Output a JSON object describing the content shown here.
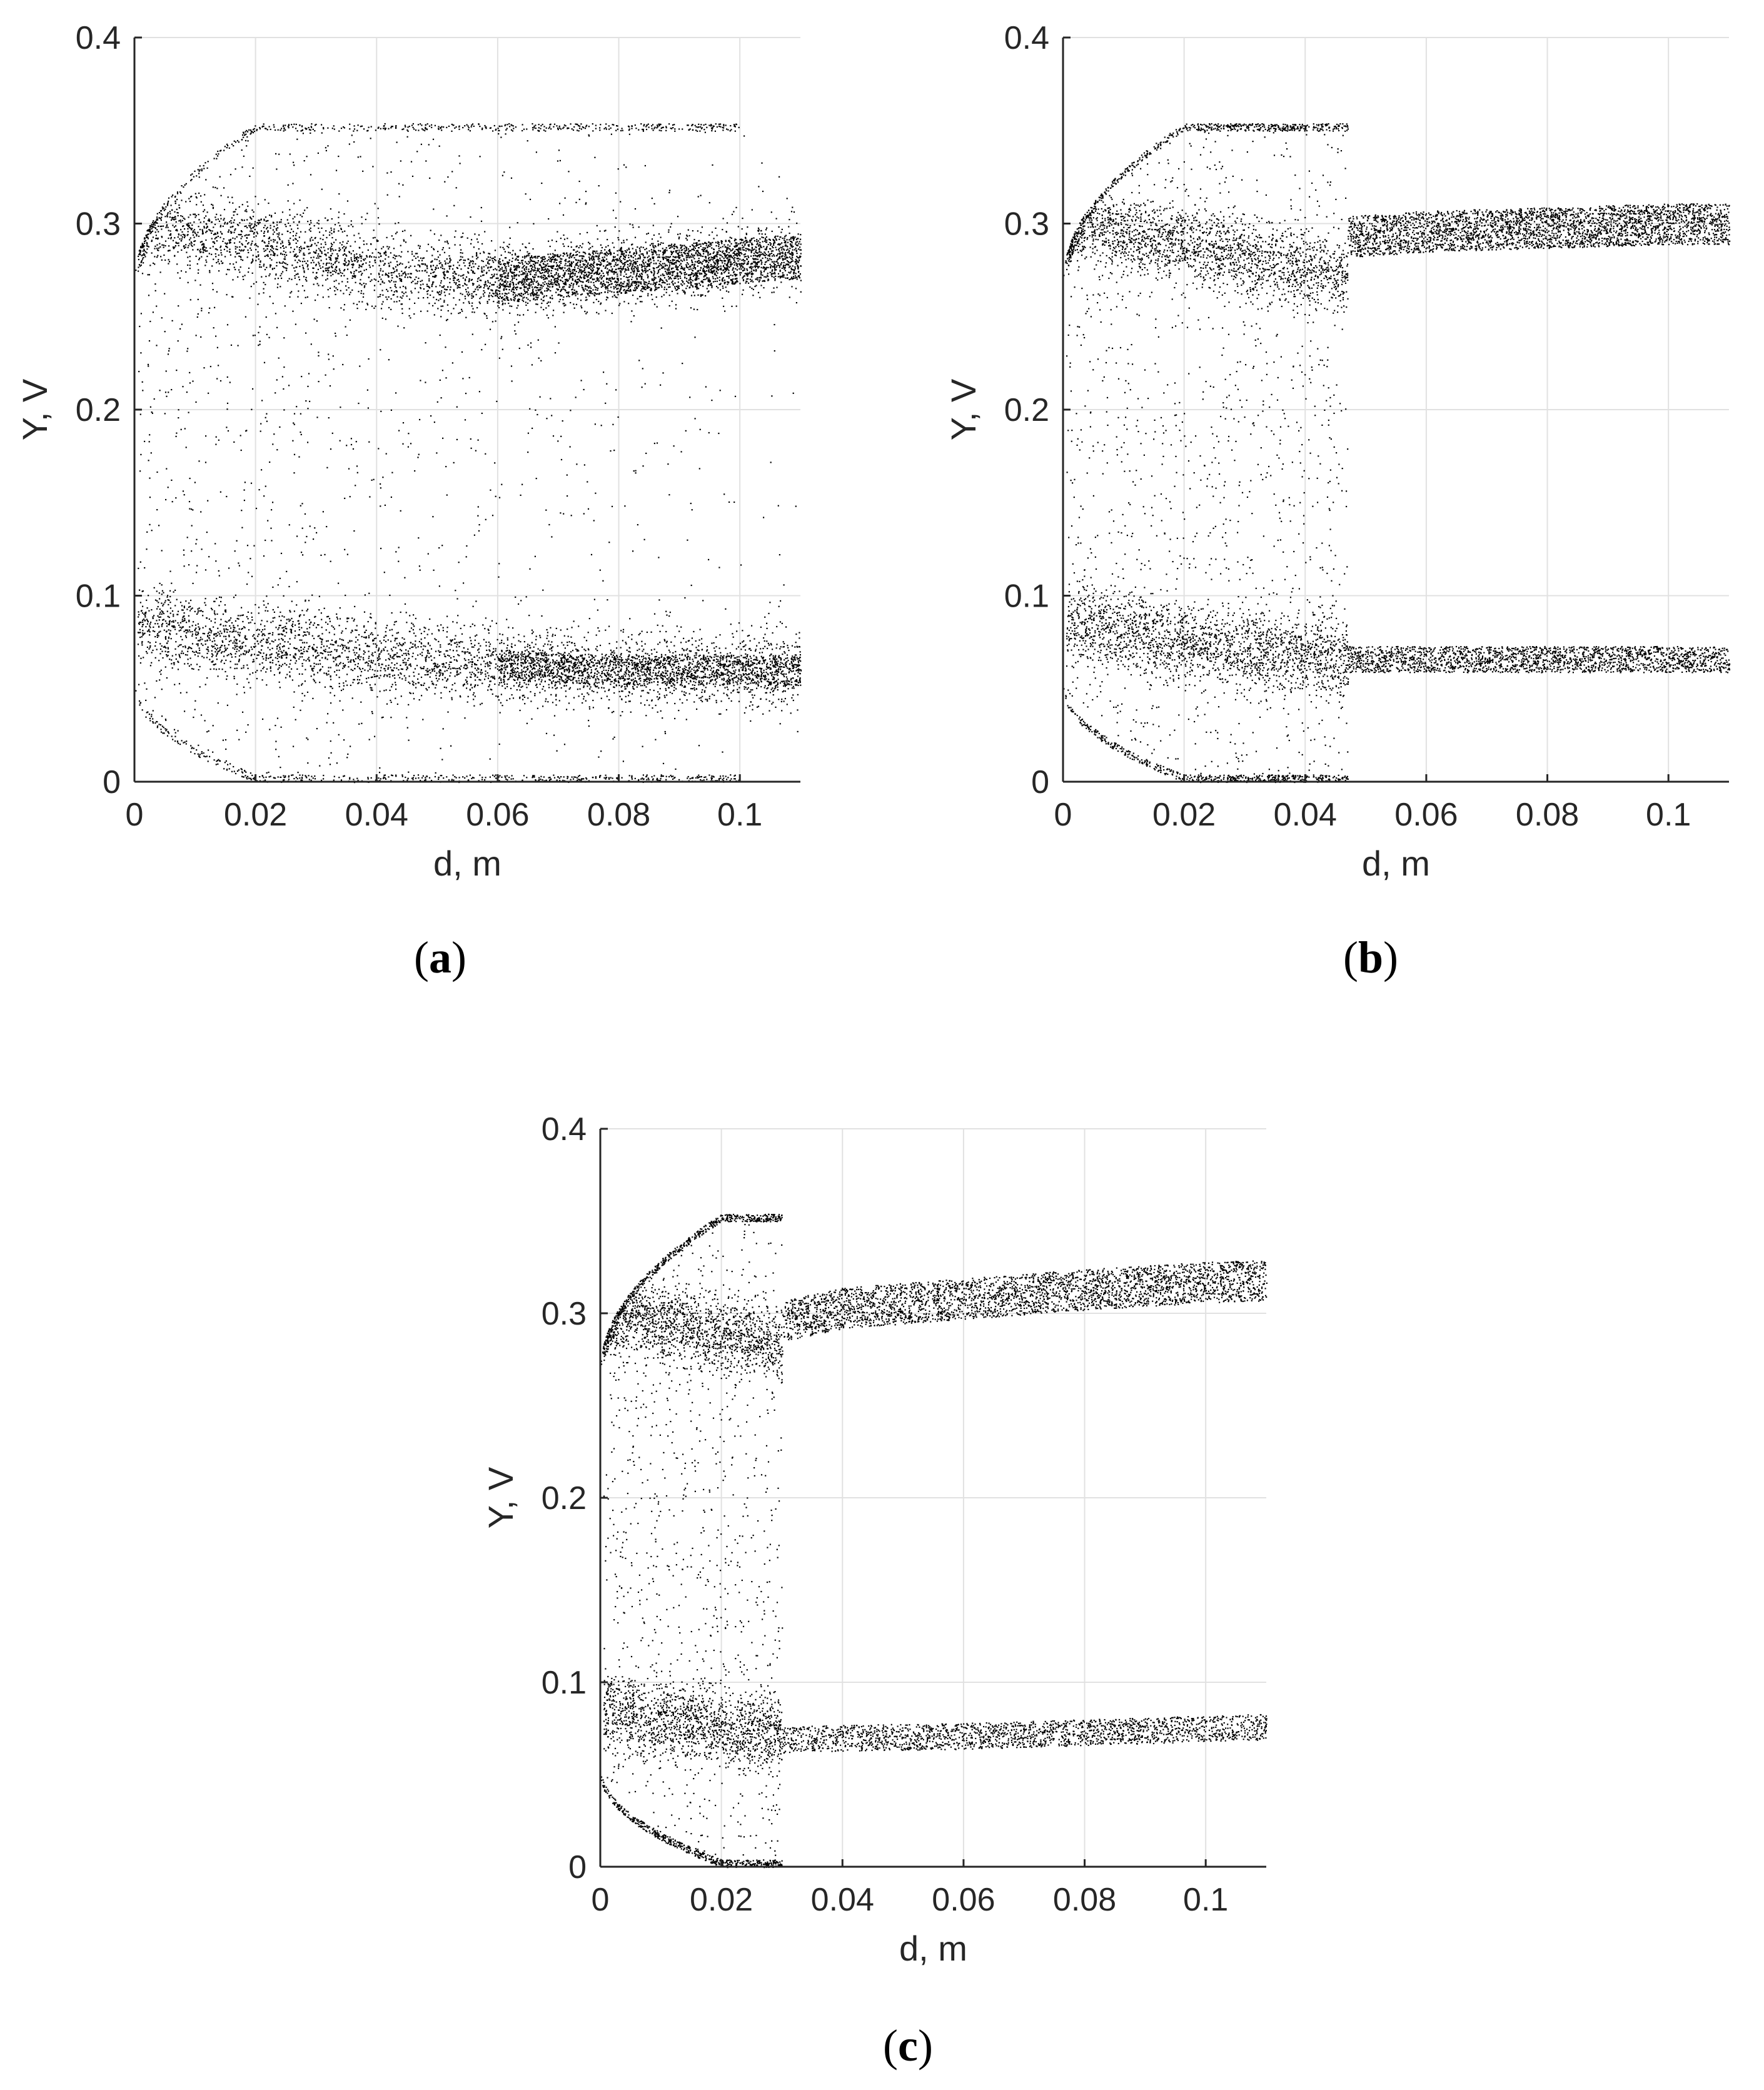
{
  "panels": [
    {
      "caption_letter": "a"
    },
    {
      "caption_letter": "b"
    },
    {
      "caption_letter": "c"
    }
  ],
  "chart_data": [
    {
      "type": "scatter",
      "panel": "a",
      "xlabel": "d, m",
      "ylabel": "Y, V",
      "xlim": [
        0,
        0.11
      ],
      "ylim": [
        0,
        0.4
      ],
      "xticks": [
        0,
        0.02,
        0.04,
        0.06,
        0.08,
        0.1
      ],
      "xtick_labels": [
        "0",
        "0.02",
        "0.04",
        "0.06",
        "0.08",
        "0.1"
      ],
      "yticks": [
        0,
        0.1,
        0.2,
        0.3,
        0.4
      ],
      "ytick_labels": [
        "0",
        "0.1",
        "0.2",
        "0.3",
        "0.4"
      ],
      "grid": true,
      "marker_color": "#000000",
      "description_points": {
        "chaotic_region_d": [
          0,
          0.11
        ],
        "upper_band": [
          [
            0,
            0.3
          ],
          [
            0.02,
            0.29
          ],
          [
            0.04,
            0.275
          ],
          [
            0.06,
            0.27
          ],
          [
            0.08,
            0.275
          ],
          [
            0.1,
            0.28
          ],
          [
            0.11,
            0.283
          ]
        ],
        "lower_band": [
          [
            0,
            0.085
          ],
          [
            0.02,
            0.075
          ],
          [
            0.04,
            0.068
          ],
          [
            0.06,
            0.063
          ],
          [
            0.08,
            0.06
          ],
          [
            0.1,
            0.06
          ],
          [
            0.11,
            0.06
          ]
        ],
        "upper_envelope": [
          [
            0,
            0.27
          ],
          [
            0.005,
            0.32
          ],
          [
            0.02,
            0.348
          ],
          [
            0.06,
            0.354
          ],
          [
            0.1,
            0.354
          ]
        ],
        "lower_envelope": [
          [
            0,
            0.05
          ],
          [
            0.005,
            0.02
          ],
          [
            0.02,
            0.005
          ],
          [
            0.06,
            0.0
          ],
          [
            0.1,
            0.0
          ]
        ]
      }
    },
    {
      "type": "scatter",
      "panel": "b",
      "xlabel": "d, m",
      "ylabel": "Y, V",
      "xlim": [
        0,
        0.11
      ],
      "ylim": [
        0,
        0.4
      ],
      "xticks": [
        0,
        0.02,
        0.04,
        0.06,
        0.08,
        0.1
      ],
      "xtick_labels": [
        "0",
        "0.02",
        "0.04",
        "0.06",
        "0.08",
        "0.1"
      ],
      "yticks": [
        0,
        0.1,
        0.2,
        0.3,
        0.4
      ],
      "ytick_labels": [
        "0",
        "0.1",
        "0.2",
        "0.3",
        "0.4"
      ],
      "grid": true,
      "marker_color": "#000000",
      "description_points": {
        "chaotic_region_d": [
          0,
          0.047
        ],
        "periodic_region_d": [
          0.047,
          0.11
        ],
        "upper_band": [
          [
            0.047,
            0.293
          ],
          [
            0.06,
            0.296
          ],
          [
            0.08,
            0.298
          ],
          [
            0.1,
            0.3
          ],
          [
            0.11,
            0.3
          ]
        ],
        "lower_band": [
          [
            0.047,
            0.066
          ],
          [
            0.06,
            0.066
          ],
          [
            0.08,
            0.066
          ],
          [
            0.1,
            0.066
          ],
          [
            0.11,
            0.066
          ]
        ]
      }
    },
    {
      "type": "scatter",
      "panel": "c",
      "xlabel": "d, m",
      "ylabel": "Y, V",
      "xlim": [
        0,
        0.11
      ],
      "ylim": [
        0,
        0.4
      ],
      "xticks": [
        0,
        0.02,
        0.04,
        0.06,
        0.08,
        0.1
      ],
      "xtick_labels": [
        "0",
        "0.02",
        "0.04",
        "0.06",
        "0.08",
        "0.1"
      ],
      "yticks": [
        0,
        0.1,
        0.2,
        0.3,
        0.4
      ],
      "ytick_labels": [
        "0",
        "0.1",
        "0.2",
        "0.3",
        "0.4"
      ],
      "grid": true,
      "marker_color": "#000000",
      "description_points": {
        "chaotic_region_d": [
          0,
          0.03
        ],
        "periodic_region_d": [
          0.03,
          0.11
        ],
        "upper_band": [
          [
            0.03,
            0.296
          ],
          [
            0.04,
            0.303
          ],
          [
            0.06,
            0.308
          ],
          [
            0.08,
            0.313
          ],
          [
            0.1,
            0.317
          ],
          [
            0.11,
            0.318
          ]
        ],
        "lower_band": [
          [
            0.03,
            0.069
          ],
          [
            0.04,
            0.07
          ],
          [
            0.06,
            0.071
          ],
          [
            0.08,
            0.073
          ],
          [
            0.1,
            0.075
          ],
          [
            0.11,
            0.076
          ]
        ]
      }
    }
  ]
}
